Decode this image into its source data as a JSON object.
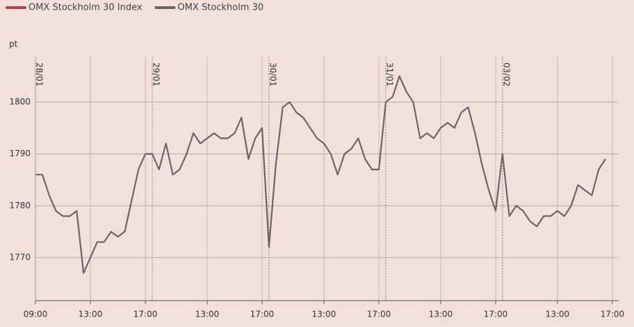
{
  "chart_data": {
    "type": "line",
    "y_label": "pt",
    "x": [
      "28/01 09:00",
      "28/01 09:30",
      "28/01 10:00",
      "28/01 10:30",
      "28/01 11:00",
      "28/01 11:30",
      "28/01 12:00",
      "28/01 12:30",
      "28/01 13:00",
      "28/01 13:30",
      "28/01 14:00",
      "28/01 14:30",
      "28/01 15:00",
      "28/01 15:30",
      "28/01 16:00",
      "28/01 16:30",
      "28/01 17:00",
      "29/01 09:00",
      "29/01 09:30",
      "29/01 10:00",
      "29/01 10:30",
      "29/01 11:00",
      "29/01 11:30",
      "29/01 12:00",
      "29/01 12:30",
      "29/01 13:00",
      "29/01 13:30",
      "29/01 14:00",
      "29/01 14:30",
      "29/01 15:00",
      "29/01 15:30",
      "29/01 16:00",
      "29/01 16:30",
      "29/01 17:00",
      "30/01 09:00",
      "30/01 09:30",
      "30/01 10:00",
      "30/01 10:30",
      "30/01 11:00",
      "30/01 11:30",
      "30/01 12:00",
      "30/01 12:30",
      "30/01 13:00",
      "30/01 13:30",
      "30/01 14:00",
      "30/01 14:30",
      "30/01 15:00",
      "30/01 15:30",
      "30/01 16:00",
      "30/01 16:30",
      "30/01 17:00",
      "31/01 09:00",
      "31/01 09:30",
      "31/01 10:00",
      "31/01 10:30",
      "31/01 11:00",
      "31/01 11:30",
      "31/01 12:00",
      "31/01 12:30",
      "31/01 13:00",
      "31/01 13:30",
      "31/01 14:00",
      "31/01 14:30",
      "31/01 15:00",
      "31/01 15:30",
      "31/01 16:00",
      "31/01 16:30",
      "31/01 17:00",
      "03/02 09:00",
      "03/02 09:30",
      "03/02 10:00",
      "03/02 10:30",
      "03/02 11:00",
      "03/02 11:30",
      "03/02 12:00",
      "03/02 12:30",
      "03/02 13:00",
      "03/02 13:30",
      "03/02 14:00",
      "03/02 14:30",
      "03/02 15:00",
      "03/02 15:30",
      "03/02 16:00",
      "03/02 16:30",
      "03/02 17:00"
    ],
    "series": [
      {
        "name": "OMX Stockholm 30 Index",
        "color": "#b0434c",
        "values": [
          1786,
          1786,
          1782,
          1779,
          1778,
          1778,
          1779,
          1767,
          1770,
          1773,
          1773,
          1775,
          1774,
          1775,
          1781,
          1787,
          1790,
          1790,
          1787,
          1792,
          1786,
          1787,
          1790,
          1794,
          1792,
          1793,
          1794,
          1793,
          1793,
          1794,
          1797,
          1789,
          1793,
          1795,
          1772,
          1788,
          1799,
          1800,
          1798,
          1797,
          1795,
          1793,
          1792,
          1790,
          1786,
          1790,
          1791,
          1793,
          1789,
          1787,
          1787,
          1800,
          1801,
          1805,
          1802,
          1800,
          1793,
          1794,
          1793,
          1795,
          1796,
          1795,
          1798,
          1799,
          1794,
          1788,
          1783,
          1779,
          1790,
          1778,
          1780,
          1779,
          1777,
          1776,
          1778,
          1778,
          1779,
          1778,
          1780,
          1784,
          1783,
          1782,
          1787,
          1789,
          null
        ]
      },
      {
        "name": "OMX Stockholm 30",
        "color": "#6b6465",
        "values": [
          1786,
          1786,
          1782,
          1779,
          1778,
          1778,
          1779,
          1767,
          1770,
          1773,
          1773,
          1775,
          1774,
          1775,
          1781,
          1787,
          1790,
          1790,
          1787,
          1792,
          1786,
          1787,
          1790,
          1794,
          1792,
          1793,
          1794,
          1793,
          1793,
          1794,
          1797,
          1789,
          1793,
          1795,
          1772,
          1788,
          1799,
          1800,
          1798,
          1797,
          1795,
          1793,
          1792,
          1790,
          1786,
          1790,
          1791,
          1793,
          1789,
          1787,
          1787,
          1800,
          1801,
          1805,
          1802,
          1800,
          1793,
          1794,
          1793,
          1795,
          1796,
          1795,
          1798,
          1799,
          1794,
          1788,
          1783,
          1779,
          1790,
          1778,
          1780,
          1779,
          1777,
          1776,
          1778,
          1778,
          1779,
          1778,
          1780,
          1784,
          1783,
          1782,
          1787,
          1789,
          null
        ]
      }
    ],
    "ylim": [
      1761.7,
      1808.7
    ],
    "yticks": [
      1770,
      1780,
      1790,
      1800
    ],
    "xticks": [
      {
        "value": "28/01 09:00",
        "label": "09:00"
      },
      {
        "value": "28/01 13:00",
        "label": "13:00"
      },
      {
        "value": "28/01 17:00",
        "label": "17:00"
      },
      {
        "value": "29/01 13:00",
        "label": "13:00"
      },
      {
        "value": "29/01 17:00",
        "label": "17:00"
      },
      {
        "value": "30/01 13:00",
        "label": "13:00"
      },
      {
        "value": "30/01 17:00",
        "label": "17:00"
      },
      {
        "value": "31/01 13:00",
        "label": "13:00"
      },
      {
        "value": "31/01 17:00",
        "label": "17:00"
      },
      {
        "value": "03/02 13:00",
        "label": "13:00"
      },
      {
        "value": "03/02 17:00",
        "label": "17:00"
      }
    ],
    "annotations": [
      {
        "x": "28/01 09:00",
        "label": "28/01"
      },
      {
        "x": "29/01 09:00",
        "label": "29/01"
      },
      {
        "x": "30/01 09:00",
        "label": "30/01"
      },
      {
        "x": "31/01 09:00",
        "label": "31/01"
      },
      {
        "x": "03/02 09:00",
        "label": "03/02"
      }
    ],
    "grid": true,
    "legend": "top-left"
  }
}
